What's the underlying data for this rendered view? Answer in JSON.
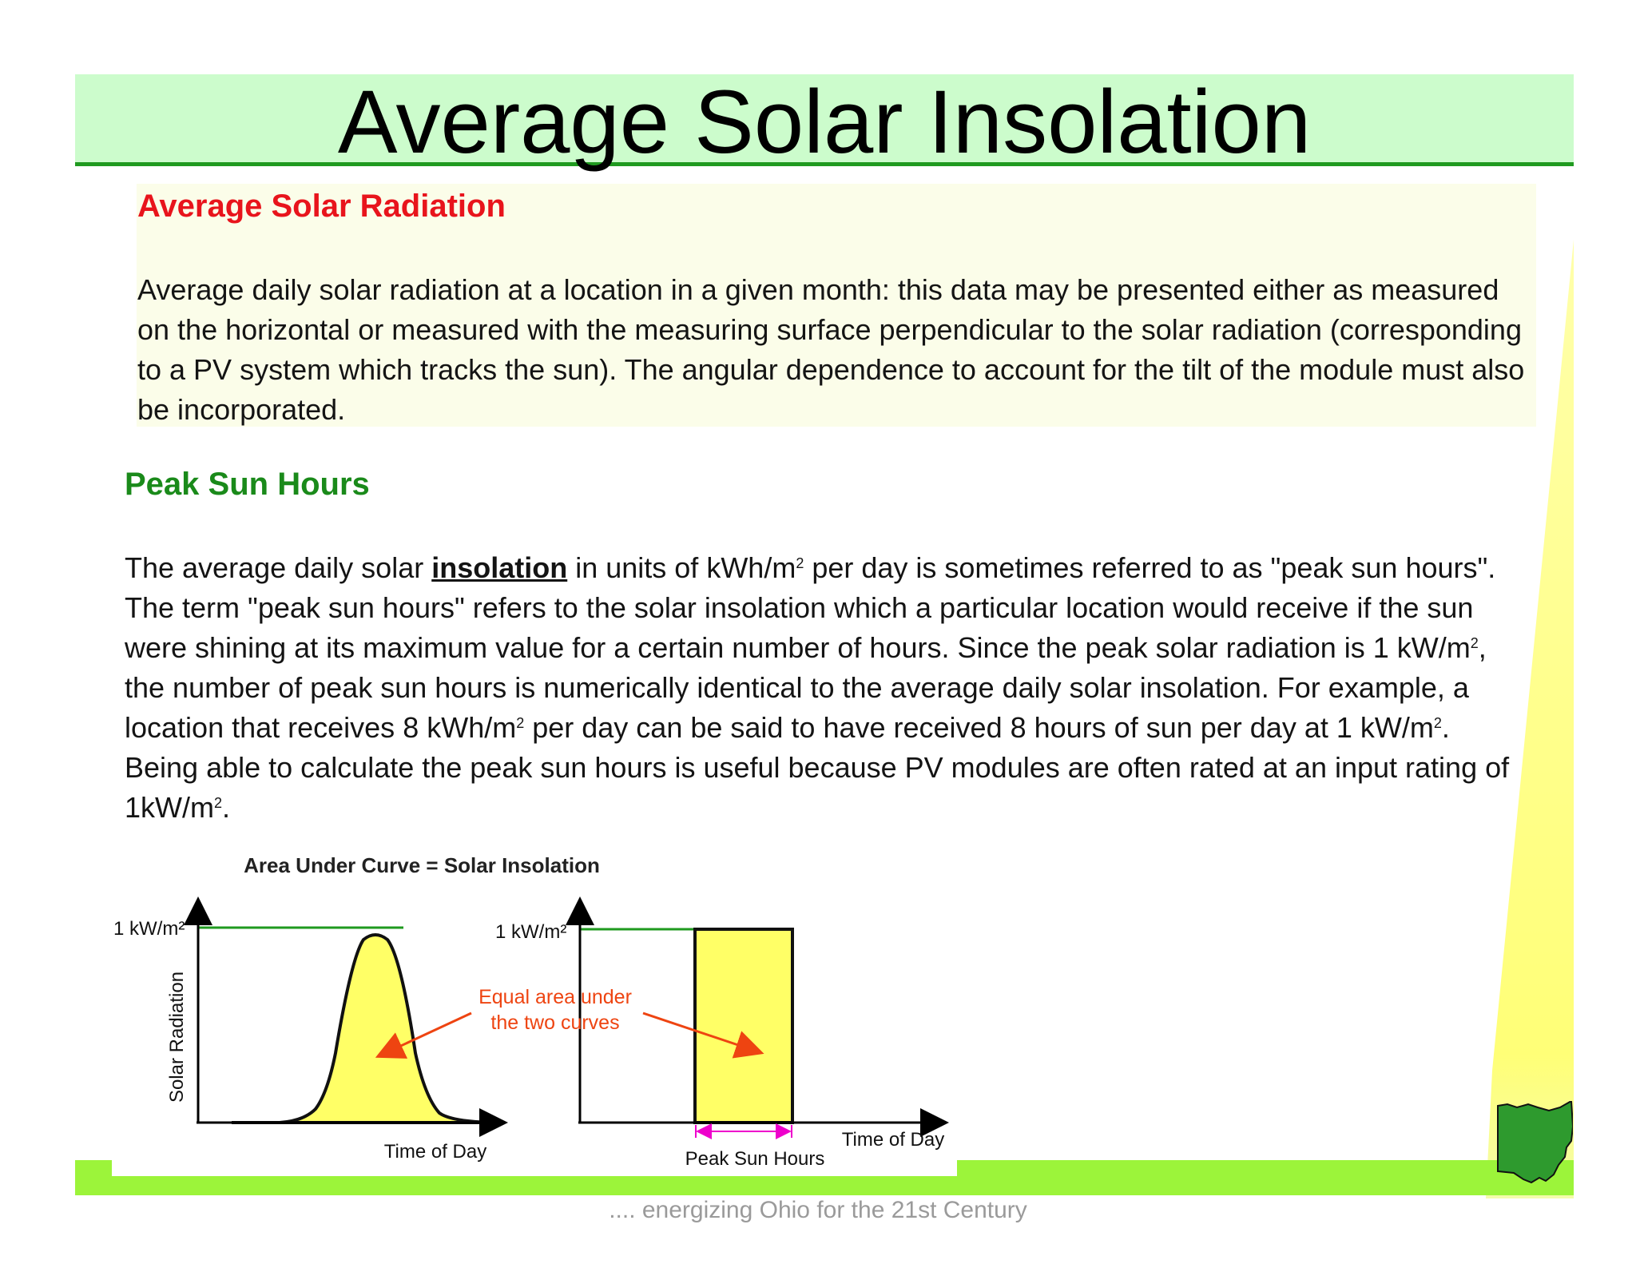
{
  "title": "Average Solar Insolation",
  "section1": {
    "heading": "Average Solar Radiation",
    "body": "Average daily solar radiation at a location in a given month: this data may be presented either as measured on the horizontal or measured with the measuring surface perpendicular to the solar radiation (corresponding to a PV system which tracks the sun). The angular dependence to account for the tilt of the module must also be incorporated."
  },
  "section2": {
    "heading": "Peak Sun Hours",
    "p1": "The average daily solar ",
    "link": "insolation",
    "p2": " in units of kWh/m",
    "sup": "2",
    "p3": " per day is sometimes referred to as \"peak sun hours\". The term \"peak sun hours\" refers to the solar insolation which a particular location would receive if the sun were shining at its maximum value for a certain number of hours. Since the peak solar radiation is 1 kW/m",
    "p4": ", the number of peak sun hours is numerically identical to the average daily solar insolation. For example, a location that receives 8 kWh/m",
    "p5": " per day can be said to have received 8 hours of sun per day at 1 kW/m",
    "p6": ". Being able to calculate the peak sun hours is useful because PV modules are often rated at an input rating of 1kW/m",
    "p7": "."
  },
  "diagram": {
    "title": "Area Under Curve = Solar Insolation",
    "left_ylabel": "1 kW/m²",
    "left_axis_label": "Solar Radiation",
    "left_xlabel": "Time of Day",
    "right_ylabel": "1 kW/m²",
    "right_xlabel": "Time of Day",
    "annotation_line1": "Equal area under",
    "annotation_line2": "the two curves",
    "bracket_label": "Peak Sun Hours",
    "colors": {
      "fill": "#ffff66",
      "limit_line": "#1f9a1f",
      "arrow": "#ee4411",
      "bracket": "#ee00cc"
    }
  },
  "footer": ".... energizing Ohio for the 21st Century",
  "colors": {
    "title_band": "#ccfccc",
    "title_rule": "#1f9a1f",
    "heading_red": "#e8141c",
    "heading_green": "#1a8a1a",
    "green_bar": "#9cf43a",
    "ohio": "#2e9a2e"
  }
}
